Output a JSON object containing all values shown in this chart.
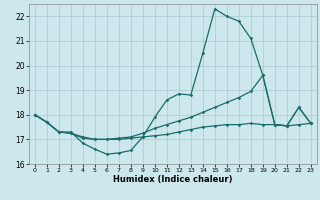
{
  "xlabel": "Humidex (Indice chaleur)",
  "xlim": [
    -0.5,
    23.5
  ],
  "ylim": [
    16,
    22.5
  ],
  "yticks": [
    16,
    17,
    18,
    19,
    20,
    21,
    22
  ],
  "xticks": [
    0,
    1,
    2,
    3,
    4,
    5,
    6,
    7,
    8,
    9,
    10,
    11,
    12,
    13,
    14,
    15,
    16,
    17,
    18,
    19,
    20,
    21,
    22,
    23
  ],
  "bg_color": "#cde8ec",
  "grid_color": "#aecdd4",
  "line_color": "#1a6b6b",
  "line1_x": [
    0,
    1,
    2,
    3,
    4,
    5,
    6,
    7,
    8,
    9,
    10,
    11,
    12,
    13,
    14,
    15,
    16,
    17,
    18,
    19,
    20,
    21,
    22,
    23
  ],
  "line1_y": [
    18.0,
    17.7,
    17.3,
    17.3,
    16.85,
    16.6,
    16.4,
    16.45,
    16.55,
    17.1,
    17.9,
    18.6,
    18.85,
    18.8,
    20.5,
    22.3,
    22.0,
    21.8,
    21.1,
    19.6,
    17.6,
    17.55,
    18.3,
    17.65
  ],
  "line2_x": [
    0,
    1,
    2,
    3,
    4,
    5,
    6,
    7,
    8,
    9,
    10,
    11,
    12,
    13,
    14,
    15,
    16,
    17,
    18,
    19,
    20,
    21,
    22,
    23
  ],
  "line2_y": [
    18.0,
    17.7,
    17.3,
    17.25,
    17.1,
    17.0,
    17.0,
    17.05,
    17.1,
    17.25,
    17.45,
    17.6,
    17.75,
    17.9,
    18.1,
    18.3,
    18.5,
    18.7,
    18.95,
    19.6,
    17.6,
    17.55,
    18.3,
    17.65
  ],
  "line3_x": [
    0,
    1,
    2,
    3,
    4,
    5,
    6,
    7,
    8,
    9,
    10,
    11,
    12,
    13,
    14,
    15,
    16,
    17,
    18,
    19,
    20,
    21,
    22,
    23
  ],
  "line3_y": [
    18.0,
    17.7,
    17.3,
    17.25,
    17.05,
    17.0,
    17.0,
    17.0,
    17.05,
    17.1,
    17.15,
    17.2,
    17.3,
    17.4,
    17.5,
    17.55,
    17.6,
    17.6,
    17.65,
    17.6,
    17.6,
    17.55,
    17.6,
    17.65
  ]
}
